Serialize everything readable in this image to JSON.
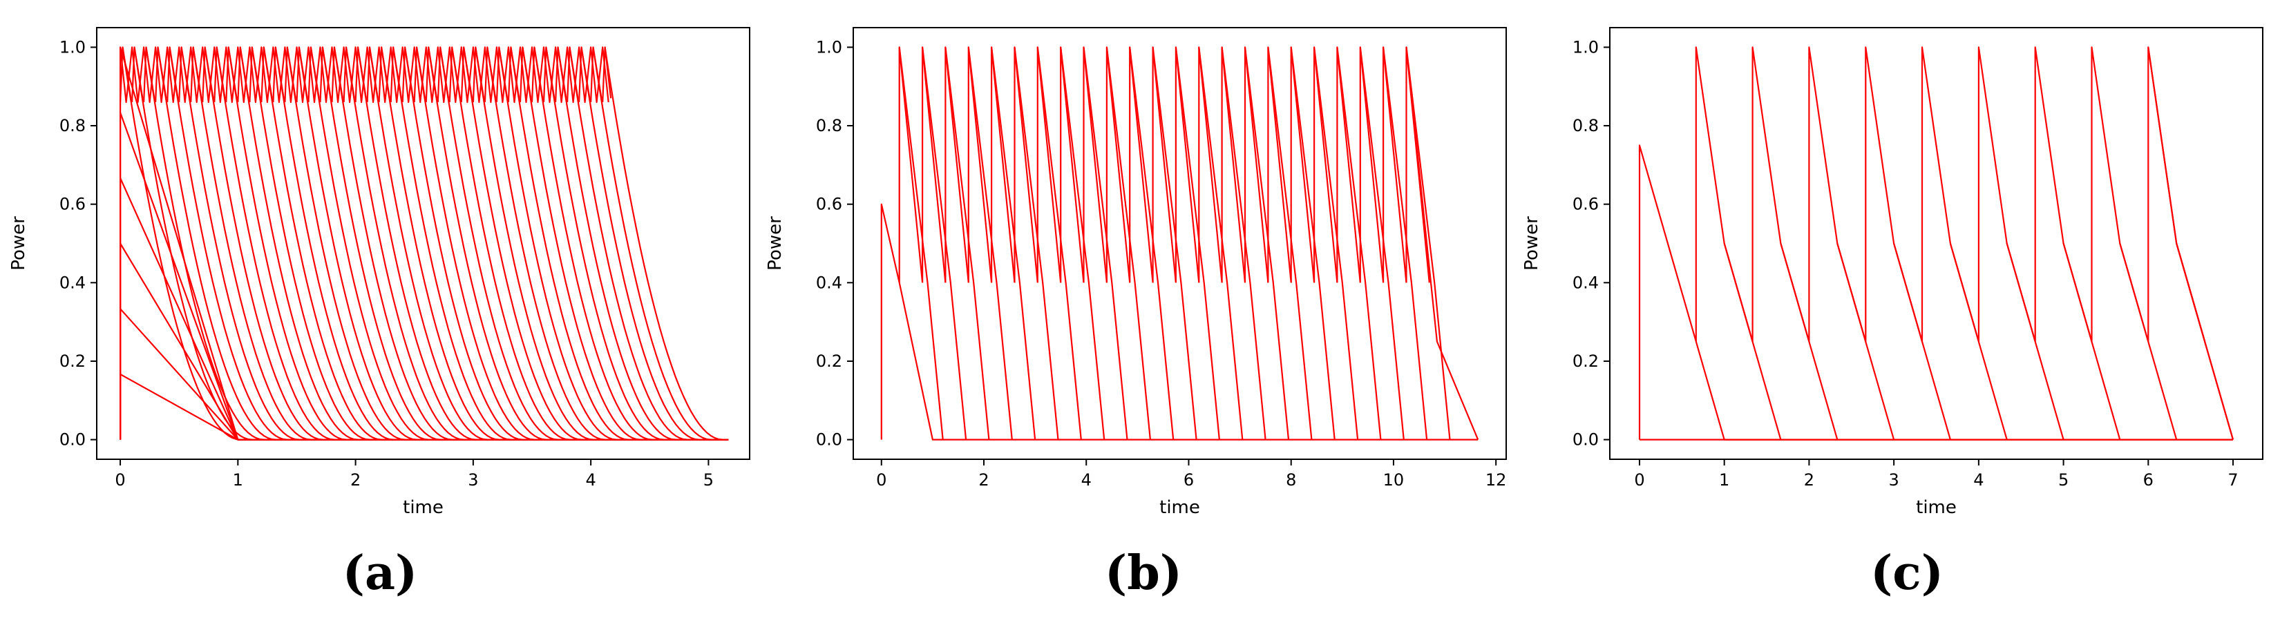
{
  "chart_data": [
    {
      "type": "line",
      "panel_label": "(a)",
      "xlabel": "time",
      "ylabel": "Power",
      "xlim": [
        -0.2,
        5.35
      ],
      "ylim": [
        -0.05,
        1.05
      ],
      "xticks": [
        "0",
        "1",
        "2",
        "3",
        "4",
        "5"
      ],
      "xtick_values": [
        0,
        1,
        2,
        3,
        4,
        5
      ],
      "yticks": [
        "0.0",
        "0.2",
        "0.4",
        "0.6",
        "0.8",
        "1.0"
      ],
      "ytick_values": [
        0.0,
        0.2,
        0.4,
        0.6,
        0.8,
        1.0
      ],
      "color": "#ff0000",
      "series_description": "overlapping pulses, ramp-up then decay to zero",
      "pulse_period": 0.1,
      "pulse_count": 42,
      "initial_start_levels": [
        0.1667,
        0.3333,
        0.5,
        0.6667,
        0.8333,
        1.0
      ],
      "initial_end_time": 1.0,
      "tail_decay_time": 1.0,
      "last_pulse_end": 4.17,
      "last_tail_end": 5.17
    },
    {
      "type": "line",
      "panel_label": "(b)",
      "xlabel": "time",
      "ylabel": "Power",
      "xlim": [
        -0.55,
        12.2
      ],
      "ylim": [
        -0.05,
        1.05
      ],
      "xticks": [
        "0",
        "2",
        "4",
        "6",
        "8",
        "10",
        "12"
      ],
      "xtick_values": [
        0,
        2,
        4,
        6,
        8,
        10,
        12
      ],
      "yticks": [
        "0.0",
        "0.2",
        "0.4",
        "0.6",
        "0.8",
        "1.0"
      ],
      "ytick_values": [
        0.0,
        0.2,
        0.4,
        0.6,
        0.8,
        1.0
      ],
      "color": "#ff0000",
      "initial_peak": 0.6,
      "pulse_start": 0.35,
      "pulse_period": 0.45,
      "pulse_count": 23,
      "pulse_min": 0.4,
      "tail_low": 0.25,
      "last_tail_end": 11.65
    },
    {
      "type": "line",
      "panel_label": "(c)",
      "xlabel": "time",
      "ylabel": "Power",
      "xlim": [
        -0.35,
        7.35
      ],
      "ylim": [
        -0.05,
        1.05
      ],
      "xticks": [
        "0",
        "1",
        "2",
        "3",
        "4",
        "5",
        "6",
        "7"
      ],
      "xtick_values": [
        0,
        1,
        2,
        3,
        4,
        5,
        6,
        7
      ],
      "yticks": [
        "0.0",
        "0.2",
        "0.4",
        "0.6",
        "0.8",
        "1.0"
      ],
      "ytick_values": [
        0.0,
        0.2,
        0.4,
        0.6,
        0.8,
        1.0
      ],
      "color": "#ff0000",
      "initial_peak": 0.75,
      "pulse_times": [
        0.667,
        1.333,
        2.0,
        2.667,
        3.333,
        4.0,
        4.667,
        5.333,
        6.0
      ],
      "pulse_min": 0.25,
      "decay_mid": 0.5,
      "last_tail_end": 7.0
    }
  ]
}
